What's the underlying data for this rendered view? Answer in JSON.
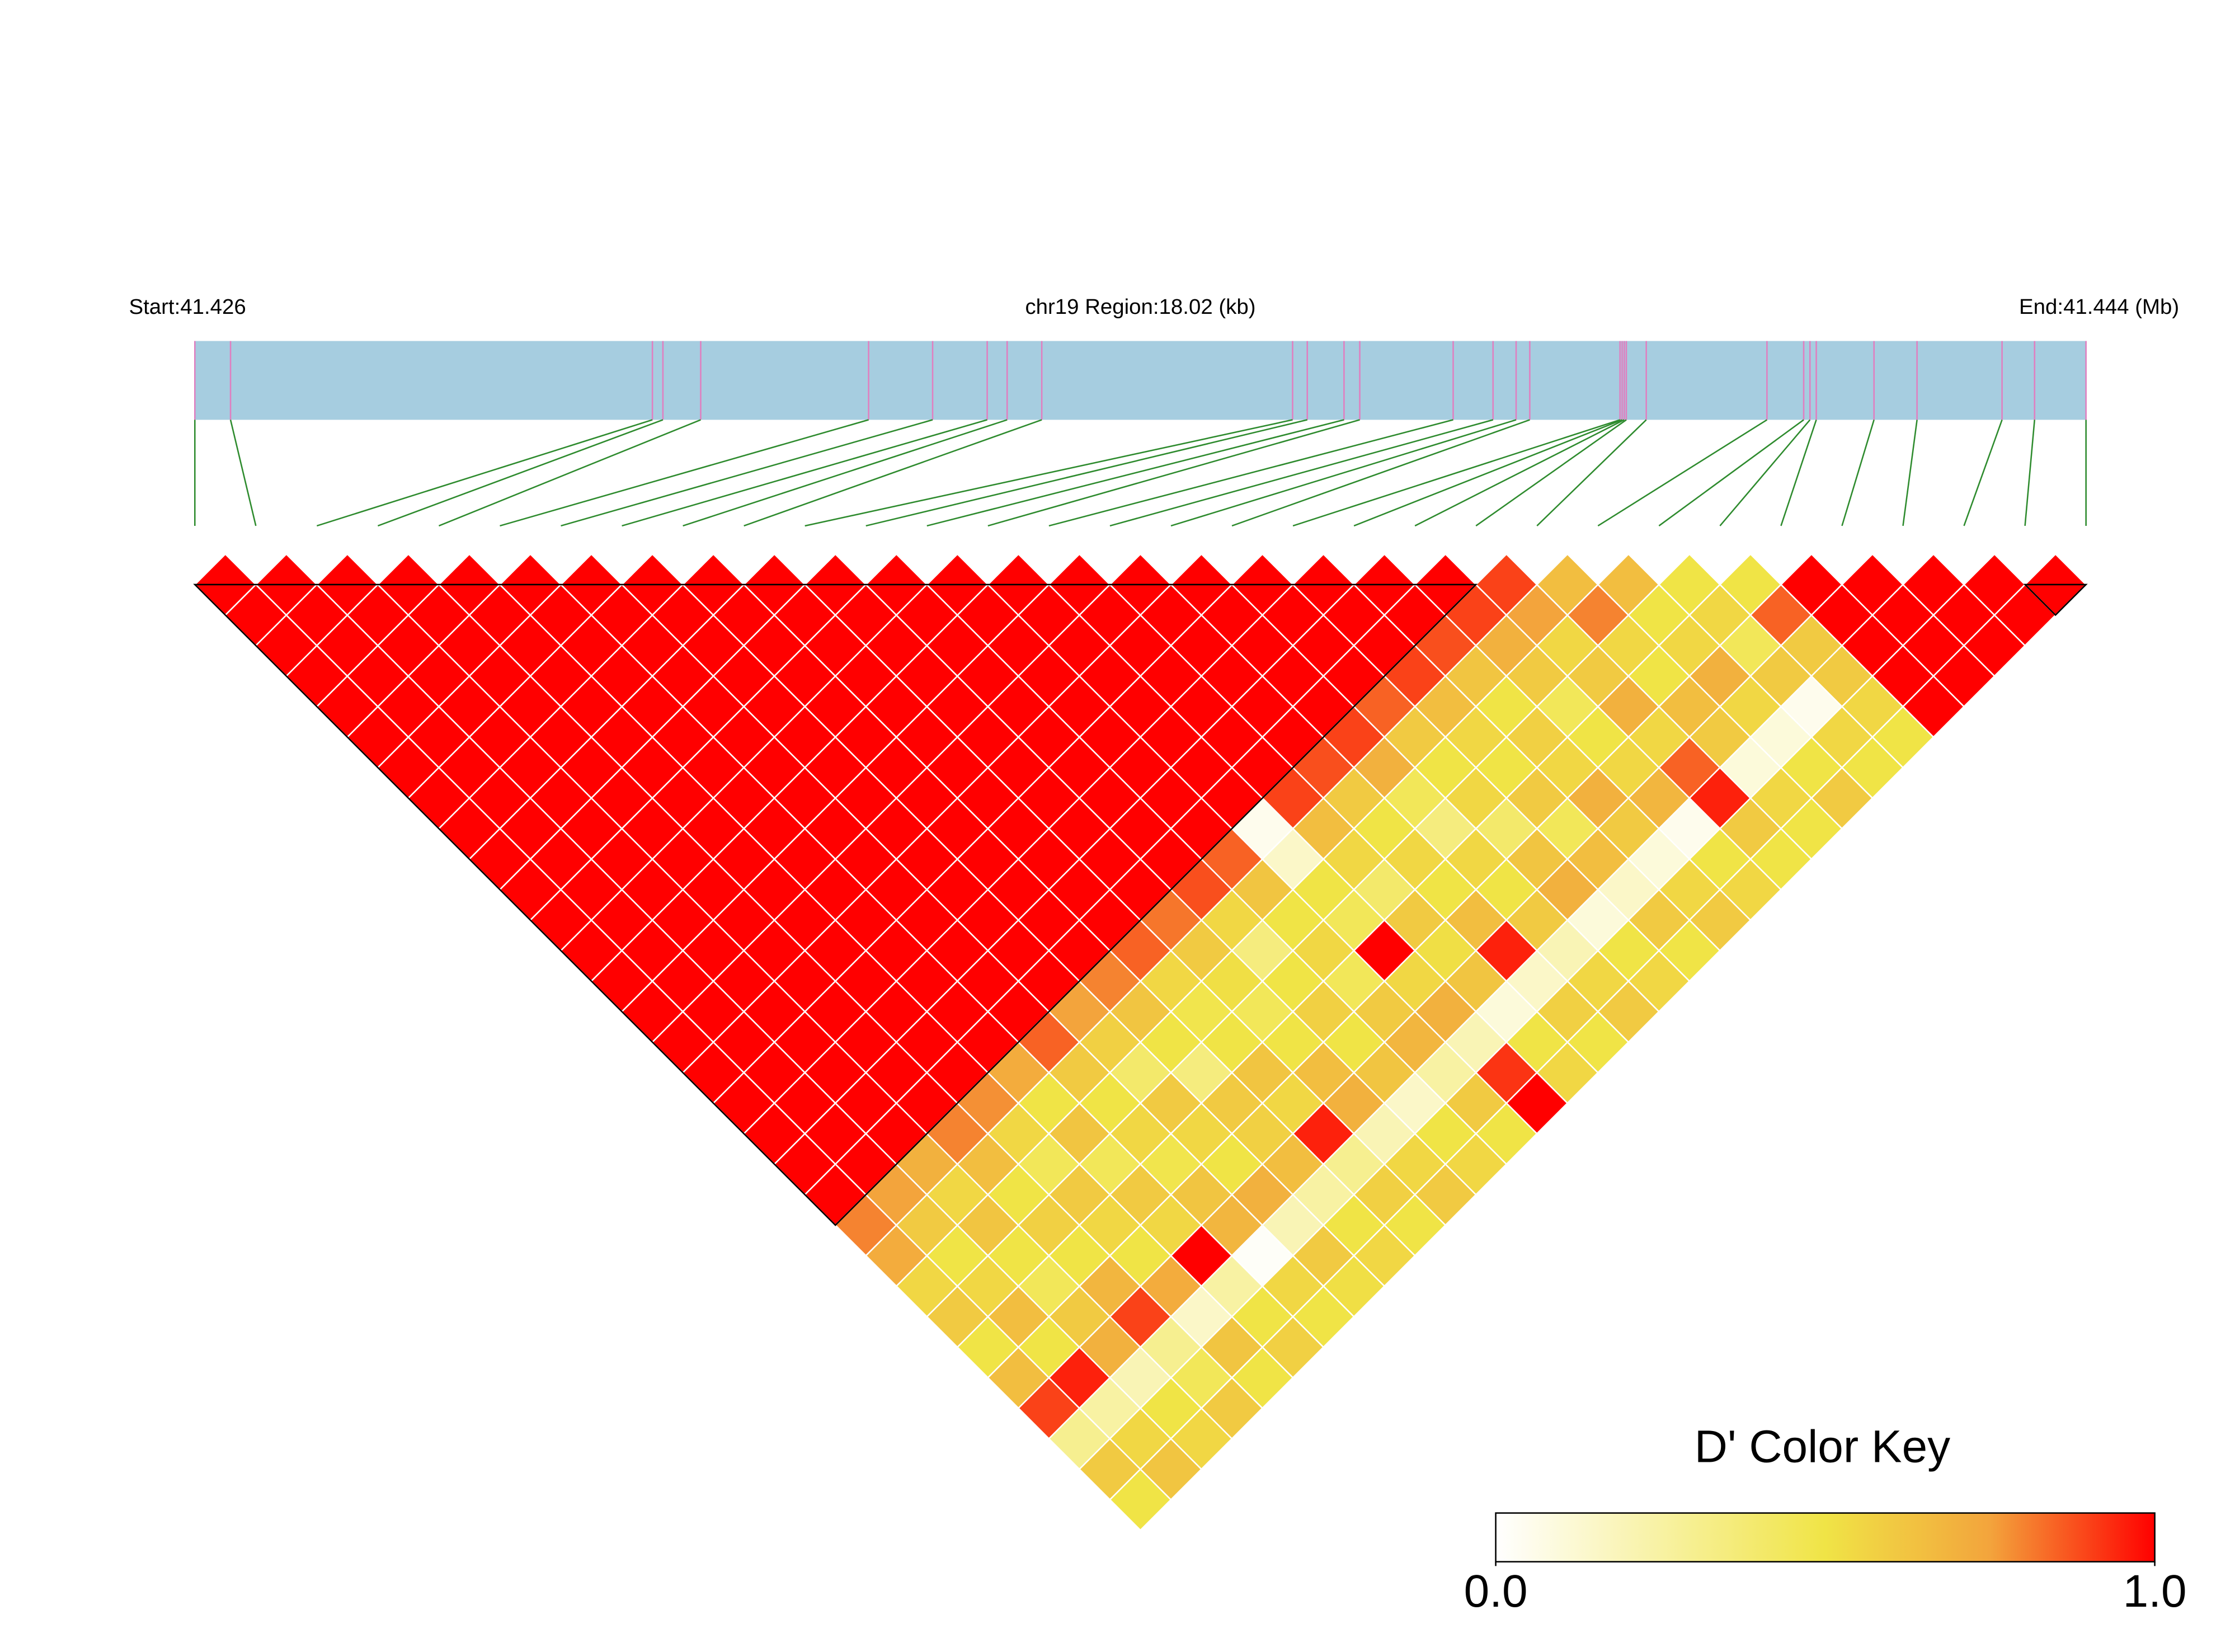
{
  "chart_data": {
    "type": "ld_heatmap",
    "start_label": "Start:41.426",
    "region_label": "chr19 Region:18.02 (kb)",
    "end_label": "End:41.444 (Mb)",
    "key_title": "D' Color Key",
    "xlim": [
      0,
      18.02
    ],
    "snp_positions": [
      0,
      0.34,
      4.36,
      4.46,
      4.82,
      6.42,
      7.03,
      7.55,
      7.74,
      8.07,
      10.46,
      10.6,
      10.95,
      11.1,
      11.99,
      12.37,
      12.59,
      12.72,
      13.58,
      13.6,
      13.62,
      13.64,
      13.83,
      14.98,
      15.33,
      15.39,
      15.45,
      16.0,
      16.41,
      17.22,
      17.53,
      18.02
    ],
    "bar_color": "#a6cde0",
    "snp_line_color": "#e07fc0",
    "connector_color": "#2e8b2e",
    "blocks": [
      [
        0,
        21
      ],
      [
        30,
        31
      ]
    ],
    "color_stops": [
      {
        "value": 0,
        "color": "#ffffff"
      },
      {
        "value": 0.5,
        "color": "#f0e446"
      },
      {
        "value": 0.75,
        "color": "#f3a43c"
      },
      {
        "value": 1,
        "color": "#ff0000"
      }
    ],
    "key_ticks": [
      {
        "value": 0,
        "label": "0.0"
      },
      {
        "value": 1,
        "label": "1.0"
      }
    ],
    "dprime": [
      [
        1,
        1,
        1,
        1,
        1,
        1,
        1,
        1,
        1,
        1,
        1,
        1,
        1,
        1,
        1,
        1,
        1,
        1,
        1,
        1,
        1,
        0.8,
        0.72,
        0.55,
        0.6,
        0.5,
        0.65,
        0.9,
        0.3,
        0.6,
        0.5
      ],
      [
        1,
        1,
        1,
        1,
        1,
        1,
        1,
        1,
        1,
        1,
        1,
        1,
        1,
        1,
        1,
        1,
        1,
        1,
        1,
        1,
        0.75,
        0.6,
        0.5,
        0.55,
        0.65,
        0.5,
        0.95,
        0.25,
        0.55,
        0.62
      ],
      [
        1,
        1,
        1,
        1,
        1,
        1,
        1,
        1,
        1,
        1,
        1,
        1,
        1,
        1,
        1,
        1,
        1,
        1,
        1,
        0.7,
        0.55,
        0.62,
        0.5,
        0.45,
        0.6,
        0.7,
        0.2,
        0.5,
        0.55
      ],
      [
        1,
        1,
        1,
        1,
        1,
        1,
        1,
        1,
        1,
        1,
        1,
        1,
        1,
        1,
        1,
        1,
        1,
        1,
        0.8,
        0.65,
        0.5,
        0.58,
        0.5,
        0.68,
        0.9,
        0.3,
        0.45,
        0.6
      ],
      [
        1,
        1,
        1,
        1,
        1,
        1,
        1,
        1,
        1,
        1,
        1,
        1,
        1,
        1,
        1,
        1,
        1,
        0.78,
        0.55,
        0.45,
        0.6,
        0.55,
        0.5,
        0.72,
        0.15,
        0.62,
        0.5
      ],
      [
        1,
        1,
        1,
        1,
        1,
        1,
        1,
        1,
        1,
        1,
        1,
        1,
        1,
        1,
        1,
        1,
        0.72,
        0.5,
        0.62,
        0.45,
        0.6,
        0.55,
        1,
        0.25,
        0.5,
        0.58
      ],
      [
        1,
        1,
        1,
        1,
        1,
        1,
        1,
        1,
        1,
        1,
        1,
        1,
        1,
        1,
        1,
        0.85,
        0.6,
        0.5,
        0.55,
        0.48,
        0.62,
        0.68,
        0.02,
        0.55,
        0.5
      ],
      [
        1,
        1,
        1,
        1,
        1,
        1,
        1,
        1,
        1,
        1,
        1,
        1,
        1,
        1,
        0.75,
        0.58,
        0.4,
        0.6,
        0.55,
        0.5,
        0.7,
        0.2,
        0.6,
        0.52
      ],
      [
        1,
        1,
        1,
        1,
        1,
        1,
        1,
        1,
        1,
        1,
        1,
        1,
        1,
        0.8,
        0.62,
        0.5,
        0.35,
        0.6,
        0.58,
        0.65,
        0.25,
        0.5,
        0.55
      ],
      [
        1,
        1,
        1,
        1,
        1,
        1,
        1,
        1,
        1,
        1,
        1,
        1,
        0.85,
        0.55,
        0.48,
        0.5,
        0.62,
        0.55,
        0.95,
        0.3,
        0.58,
        0.5
      ],
      [
        1,
        1,
        1,
        1,
        1,
        1,
        1,
        1,
        1,
        1,
        1,
        0.82,
        0.6,
        0.52,
        0.45,
        0.5,
        0.65,
        0.7,
        0.2,
        0.55,
        0.6
      ],
      [
        1,
        1,
        1,
        1,
        1,
        1,
        1,
        1,
        1,
        1,
        0.88,
        0.55,
        0.35,
        0.5,
        0.58,
        0.5,
        0.62,
        0.15,
        0.5,
        0.55
      ],
      [
        1,
        1,
        1,
        1,
        1,
        1,
        1,
        1,
        1,
        0.85,
        0.62,
        0.5,
        0.55,
        0.45,
        0.6,
        0.68,
        0.25,
        0.6,
        0.5
      ],
      [
        1,
        1,
        1,
        1,
        1,
        1,
        1,
        1,
        0.05,
        0.15,
        0.5,
        0.45,
        1,
        0.55,
        0.7,
        0.2,
        0.92,
        1
      ],
      [
        1,
        1,
        1,
        1,
        1,
        1,
        1,
        0.9,
        0.65,
        0.55,
        0.4,
        0.6,
        0.52,
        0.62,
        0.1,
        0.5,
        0.55
      ],
      [
        1,
        1,
        1,
        1,
        1,
        1,
        0.88,
        0.6,
        0.5,
        0.55,
        0.5,
        0.65,
        0.95,
        0.15,
        0.58,
        0.5
      ],
      [
        1,
        1,
        1,
        1,
        1,
        0.9,
        0.7,
        0.45,
        0.35,
        0.55,
        0.5,
        0.6,
        0.2,
        0.55,
        0.6
      ],
      [
        1,
        1,
        1,
        1,
        0.85,
        0.6,
        0.5,
        0.55,
        0.4,
        0.62,
        0.7,
        0.1,
        0.5,
        0.55
      ],
      [
        1,
        1,
        1,
        0.9,
        0.65,
        0.55,
        0.5,
        0.6,
        0.45,
        0.65,
        0.15,
        0.6,
        0.5
      ],
      [
        1,
        1,
        0.88,
        0.62,
        0.5,
        0.58,
        0.55,
        0.7,
        0.6,
        0.1,
        0.55,
        0.6
      ],
      [
        1,
        0.9,
        0.7,
        0.6,
        0.45,
        0.5,
        0.55,
        0.68,
        0.05,
        0.5,
        0.55
      ],
      [
        0.9,
        0.75,
        0.55,
        0.6,
        0.7,
        0.55,
        0.85,
        0.95,
        0.6,
        0.5
      ],
      [
        0.65,
        0.8,
        0.55,
        0.5,
        0.65,
        0.6,
        0.1,
        0.55,
        0.5
      ],
      [
        0.65,
        0.5,
        0.55,
        0.7,
        0.55,
        0.1,
        0.5,
        0.6
      ],
      [
        0.5,
        0.55,
        0.45,
        0.6,
        0.05,
        0.55,
        0.5
      ],
      [
        0.5,
        0.85,
        0.6,
        0.6,
        0.55,
        0.5
      ],
      [
        1,
        1,
        1,
        1,
        1
      ],
      [
        1,
        1,
        1,
        1
      ],
      [
        1,
        1,
        1
      ],
      [
        1,
        1
      ],
      [
        1
      ]
    ]
  }
}
